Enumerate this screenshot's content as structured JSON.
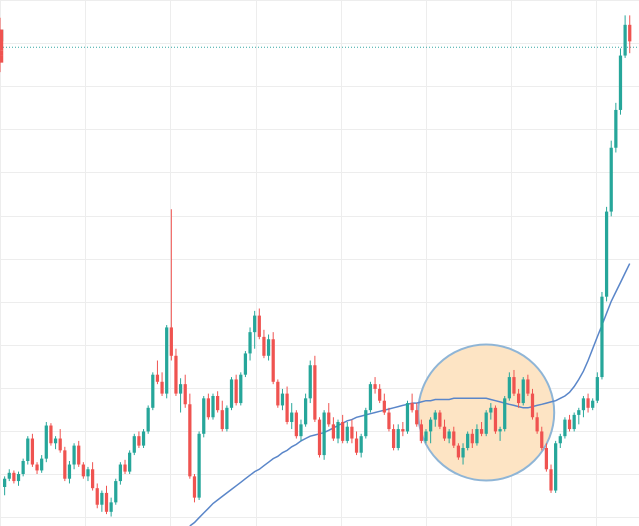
{
  "chart_data": {
    "type": "candlestick",
    "x_index": [
      0,
      1,
      2,
      3,
      4,
      5,
      6,
      7,
      8,
      9,
      10,
      11,
      12,
      13,
      14,
      15,
      16,
      17,
      18,
      19,
      20,
      21,
      22,
      23,
      24,
      25,
      26,
      27,
      28,
      29,
      30,
      31,
      32,
      33,
      34,
      35,
      36,
      37,
      38,
      39,
      40,
      41,
      42,
      43,
      44,
      45,
      46,
      47,
      48,
      49,
      50,
      51,
      52,
      53,
      54,
      55,
      56,
      57,
      58,
      59,
      60,
      61,
      62,
      63,
      64,
      65,
      66,
      67,
      68,
      69,
      70,
      71,
      72,
      73,
      74,
      75,
      76,
      77,
      78,
      79,
      80,
      81,
      82,
      83,
      84,
      85,
      86,
      87,
      88,
      89,
      90,
      91,
      92,
      93,
      94,
      95,
      96,
      97,
      98,
      99,
      100,
      101,
      102,
      103,
      104,
      105,
      106,
      107,
      108,
      109,
      110,
      111,
      112,
      113,
      114,
      115,
      116,
      117,
      118,
      119,
      120,
      121,
      122,
      123,
      124,
      125,
      126,
      127,
      128,
      129,
      130,
      131,
      132,
      133,
      134,
      135
    ],
    "candles": [
      [
        33,
        42,
        26,
        40
      ],
      [
        40,
        48,
        38,
        45
      ],
      [
        45,
        47,
        36,
        38
      ],
      [
        38,
        46,
        34,
        44
      ],
      [
        44,
        57,
        42,
        55
      ],
      [
        55,
        76,
        52,
        74
      ],
      [
        74,
        78,
        50,
        52
      ],
      [
        52,
        54,
        44,
        47
      ],
      [
        47,
        60,
        45,
        57
      ],
      [
        57,
        88,
        54,
        85
      ],
      [
        85,
        87,
        68,
        70
      ],
      [
        70,
        76,
        65,
        74
      ],
      [
        74,
        82,
        62,
        64
      ],
      [
        64,
        67,
        38,
        40
      ],
      [
        40,
        55,
        36,
        52
      ],
      [
        52,
        70,
        48,
        68
      ],
      [
        68,
        72,
        50,
        52
      ],
      [
        52,
        54,
        40,
        42
      ],
      [
        42,
        50,
        38,
        48
      ],
      [
        48,
        54,
        30,
        32
      ],
      [
        32,
        36,
        15,
        18
      ],
      [
        18,
        30,
        12,
        28
      ],
      [
        28,
        34,
        10,
        12
      ],
      [
        12,
        24,
        8,
        20
      ],
      [
        20,
        40,
        18,
        38
      ],
      [
        38,
        54,
        35,
        52
      ],
      [
        52,
        56,
        44,
        46
      ],
      [
        46,
        64,
        44,
        62
      ],
      [
        62,
        78,
        60,
        76
      ],
      [
        76,
        80,
        66,
        68
      ],
      [
        68,
        82,
        66,
        80
      ],
      [
        80,
        102,
        78,
        100
      ],
      [
        100,
        130,
        98,
        128
      ],
      [
        128,
        140,
        120,
        122
      ],
      [
        122,
        130,
        110,
        112
      ],
      [
        112,
        170,
        108,
        168
      ],
      [
        168,
        268,
        140,
        144
      ],
      [
        144,
        150,
        110,
        112
      ],
      [
        112,
        125,
        96,
        120
      ],
      [
        120,
        128,
        100,
        103
      ],
      [
        103,
        112,
        40,
        42
      ],
      [
        42,
        44,
        20,
        24
      ],
      [
        24,
        80,
        22,
        78
      ],
      [
        78,
        110,
        75,
        108
      ],
      [
        108,
        112,
        90,
        92
      ],
      [
        92,
        112,
        90,
        110
      ],
      [
        110,
        114,
        96,
        98
      ],
      [
        98,
        106,
        80,
        82
      ],
      [
        82,
        102,
        80,
        100
      ],
      [
        100,
        126,
        98,
        124
      ],
      [
        124,
        128,
        102,
        104
      ],
      [
        104,
        130,
        102,
        128
      ],
      [
        128,
        148,
        126,
        146
      ],
      [
        146,
        168,
        140,
        164
      ],
      [
        164,
        182,
        150,
        178
      ],
      [
        178,
        184,
        158,
        160
      ],
      [
        160,
        166,
        142,
        144
      ],
      [
        144,
        162,
        140,
        158
      ],
      [
        158,
        164,
        120,
        122
      ],
      [
        122,
        124,
        100,
        102
      ],
      [
        102,
        116,
        98,
        112
      ],
      [
        112,
        118,
        86,
        88
      ],
      [
        88,
        104,
        82,
        96
      ],
      [
        96,
        98,
        74,
        76
      ],
      [
        76,
        90,
        72,
        86
      ],
      [
        86,
        112,
        84,
        108
      ],
      [
        108,
        140,
        104,
        136
      ],
      [
        136,
        144,
        88,
        90
      ],
      [
        90,
        92,
        58,
        60
      ],
      [
        60,
        98,
        56,
        96
      ],
      [
        96,
        104,
        84,
        86
      ],
      [
        86,
        92,
        72,
        74
      ],
      [
        74,
        90,
        70,
        88
      ],
      [
        88,
        94,
        70,
        72
      ],
      [
        72,
        88,
        70,
        84
      ],
      [
        84,
        90,
        70,
        74
      ],
      [
        74,
        80,
        60,
        62
      ],
      [
        62,
        78,
        58,
        76
      ],
      [
        76,
        100,
        74,
        98
      ],
      [
        98,
        122,
        96,
        120
      ],
      [
        120,
        126,
        112,
        116
      ],
      [
        116,
        120,
        104,
        106
      ],
      [
        106,
        112,
        94,
        96
      ],
      [
        96,
        100,
        80,
        82
      ],
      [
        82,
        86,
        64,
        66
      ],
      [
        66,
        86,
        64,
        82
      ],
      [
        82,
        88,
        76,
        80
      ],
      [
        80,
        106,
        78,
        104
      ],
      [
        104,
        112,
        96,
        98
      ],
      [
        98,
        104,
        84,
        86
      ],
      [
        86,
        90,
        70,
        72
      ],
      [
        72,
        82,
        70,
        80
      ],
      [
        80,
        92,
        70,
        90
      ],
      [
        90,
        98,
        84,
        96
      ],
      [
        96,
        98,
        82,
        84
      ],
      [
        84,
        90,
        72,
        74
      ],
      [
        74,
        82,
        70,
        80
      ],
      [
        80,
        84,
        66,
        68
      ],
      [
        68,
        70,
        56,
        58
      ],
      [
        58,
        70,
        52,
        66
      ],
      [
        66,
        80,
        64,
        78
      ],
      [
        78,
        82,
        66,
        70
      ],
      [
        70,
        86,
        68,
        82
      ],
      [
        82,
        88,
        76,
        78
      ],
      [
        78,
        98,
        76,
        96
      ],
      [
        96,
        104,
        90,
        100
      ],
      [
        100,
        102,
        78,
        80
      ],
      [
        80,
        84,
        72,
        82
      ],
      [
        82,
        110,
        80,
        108
      ],
      [
        108,
        130,
        106,
        126
      ],
      [
        126,
        132,
        110,
        112
      ],
      [
        112,
        116,
        100,
        104
      ],
      [
        104,
        126,
        102,
        124
      ],
      [
        124,
        128,
        110,
        112
      ],
      [
        112,
        116,
        90,
        92
      ],
      [
        92,
        96,
        78,
        80
      ],
      [
        80,
        84,
        64,
        66
      ],
      [
        66,
        70,
        46,
        48
      ],
      [
        48,
        52,
        28,
        30
      ],
      [
        30,
        72,
        28,
        70
      ],
      [
        70,
        78,
        66,
        76
      ],
      [
        76,
        92,
        74,
        90
      ],
      [
        90,
        94,
        80,
        82
      ],
      [
        82,
        96,
        80,
        94
      ],
      [
        94,
        100,
        86,
        98
      ],
      [
        98,
        110,
        92,
        108
      ],
      [
        108,
        112,
        96,
        100
      ],
      [
        100,
        108,
        98,
        106
      ],
      [
        106,
        130,
        104,
        126
      ],
      [
        126,
        198,
        124,
        194
      ],
      [
        194,
        270,
        190,
        266
      ],
      [
        266,
        326,
        262,
        320
      ],
      [
        320,
        358,
        316,
        352
      ],
      [
        352,
        404,
        348,
        398
      ],
      [
        398,
        432,
        396,
        424
      ],
      [
        424,
        432,
        400,
        410
      ],
      [
        410,
        424,
        404,
        420
      ],
      [
        420,
        430,
        398,
        402
      ],
      [
        402,
        416,
        394,
        398
      ],
      [
        398,
        400,
        384,
        392
      ]
    ],
    "ma_line": [
      [
        40,
        0
      ],
      [
        41,
        3
      ],
      [
        42,
        7
      ],
      [
        43,
        11
      ],
      [
        44,
        15
      ],
      [
        45,
        19
      ],
      [
        46,
        22
      ],
      [
        47,
        25
      ],
      [
        48,
        28
      ],
      [
        49,
        31
      ],
      [
        50,
        34
      ],
      [
        51,
        37
      ],
      [
        52,
        40
      ],
      [
        53,
        43
      ],
      [
        54,
        46
      ],
      [
        55,
        48
      ],
      [
        56,
        51
      ],
      [
        57,
        54
      ],
      [
        58,
        57
      ],
      [
        59,
        59
      ],
      [
        60,
        62
      ],
      [
        61,
        64
      ],
      [
        62,
        67
      ],
      [
        63,
        69
      ],
      [
        64,
        72
      ],
      [
        65,
        74
      ],
      [
        66,
        76
      ],
      [
        67,
        77
      ],
      [
        68,
        78
      ],
      [
        69,
        79
      ],
      [
        70,
        81
      ],
      [
        71,
        83
      ],
      [
        72,
        85
      ],
      [
        73,
        87
      ],
      [
        74,
        89
      ],
      [
        75,
        90
      ],
      [
        76,
        92
      ],
      [
        77,
        93
      ],
      [
        78,
        94
      ],
      [
        79,
        95
      ],
      [
        80,
        96
      ],
      [
        81,
        97
      ],
      [
        82,
        98
      ],
      [
        83,
        99
      ],
      [
        84,
        100
      ],
      [
        85,
        101
      ],
      [
        86,
        102
      ],
      [
        87,
        103
      ],
      [
        88,
        104
      ],
      [
        89,
        104
      ],
      [
        90,
        105
      ],
      [
        91,
        106
      ],
      [
        92,
        106
      ],
      [
        93,
        107
      ],
      [
        94,
        107
      ],
      [
        95,
        107
      ],
      [
        96,
        107
      ],
      [
        97,
        108
      ],
      [
        98,
        108
      ],
      [
        99,
        108
      ],
      [
        100,
        108
      ],
      [
        101,
        108
      ],
      [
        102,
        108
      ],
      [
        103,
        108
      ],
      [
        104,
        108
      ],
      [
        105,
        107
      ],
      [
        106,
        106
      ],
      [
        107,
        105
      ],
      [
        108,
        104
      ],
      [
        109,
        103
      ],
      [
        110,
        102
      ],
      [
        111,
        101
      ],
      [
        112,
        100
      ],
      [
        113,
        100
      ],
      [
        114,
        101
      ],
      [
        115,
        102
      ],
      [
        116,
        103
      ],
      [
        117,
        104
      ],
      [
        118,
        105
      ],
      [
        119,
        106
      ],
      [
        120,
        108
      ],
      [
        121,
        110
      ],
      [
        122,
        113
      ],
      [
        123,
        118
      ],
      [
        124,
        124
      ],
      [
        125,
        131
      ],
      [
        126,
        140
      ],
      [
        127,
        150
      ],
      [
        128,
        160
      ],
      [
        129,
        170
      ],
      [
        130,
        180
      ],
      [
        131,
        190
      ],
      [
        132,
        198
      ],
      [
        133,
        206
      ],
      [
        134,
        214
      ],
      [
        135,
        222
      ]
    ],
    "reference_level": 405,
    "highlight": {
      "x_center": 104,
      "y_center": 96
    },
    "ylim": [
      0,
      445
    ],
    "xlim": [
      -1,
      137
    ],
    "grid": true,
    "legend": "none",
    "colors": {
      "up": "#26a69a",
      "down": "#ef5350",
      "ma": "#5a86c9",
      "reference": "#35a7a3",
      "grid": "#ededed",
      "highlight_fill": "#fde4c4",
      "highlight_stroke": "#8fb5d6"
    }
  }
}
